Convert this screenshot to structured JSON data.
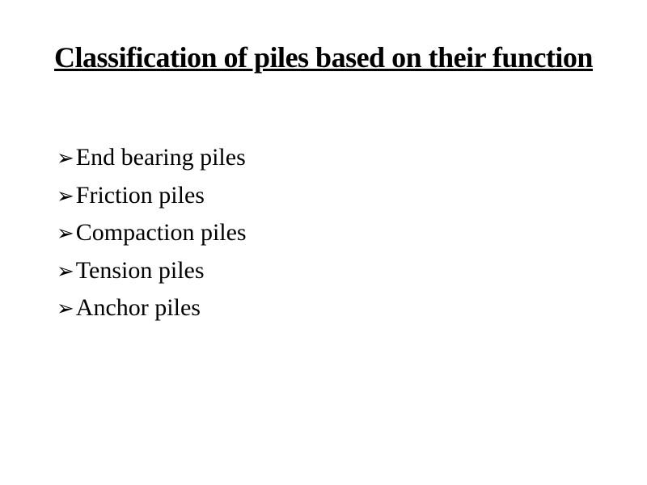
{
  "slide": {
    "title": "Classification of piles based on their function",
    "title_fontsize": 36,
    "title_color": "#000000",
    "title_underline": true,
    "title_font_family": "cursive",
    "background_color": "#ffffff",
    "bullet_char": "➢",
    "bullet_color": "#000000",
    "list_fontsize": 30,
    "list_color": "#000000",
    "items": [
      "End bearing piles",
      "Friction piles",
      "Compaction piles",
      "Tension piles",
      "Anchor piles"
    ]
  }
}
